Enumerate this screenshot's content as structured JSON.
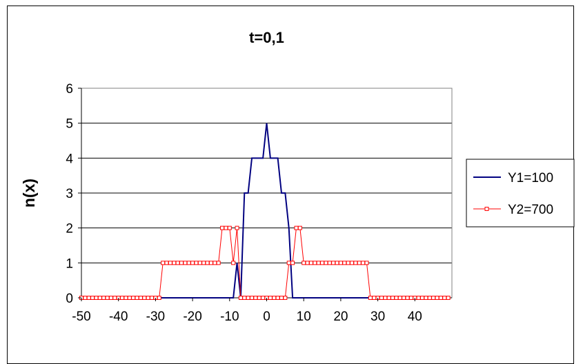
{
  "chart_data": {
    "type": "line",
    "title": "t=0,1",
    "xlabel": "",
    "ylabel": "n(x)",
    "xlim": [
      -50,
      50
    ],
    "ylim": [
      0,
      6
    ],
    "x_ticks": [
      -50,
      -40,
      -30,
      -20,
      -10,
      0,
      10,
      20,
      30,
      40
    ],
    "y_ticks": [
      0,
      1,
      2,
      3,
      4,
      5,
      6
    ],
    "grid": "horizontal",
    "legend_position": "right",
    "series": [
      {
        "name": "Y1=100",
        "color": "#000080",
        "marker": "none",
        "x": [
          -50,
          -49,
          -48,
          -47,
          -46,
          -45,
          -44,
          -43,
          -42,
          -41,
          -40,
          -39,
          -38,
          -37,
          -36,
          -35,
          -34,
          -33,
          -32,
          -31,
          -30,
          -29,
          -28,
          -27,
          -26,
          -25,
          -24,
          -23,
          -22,
          -21,
          -20,
          -19,
          -18,
          -17,
          -16,
          -15,
          -14,
          -13,
          -12,
          -11,
          -10,
          -9,
          -8,
          -7,
          -6,
          -5,
          -4,
          -3,
          -2,
          -1,
          0,
          1,
          2,
          3,
          4,
          5,
          6,
          7,
          8,
          9,
          10,
          11,
          12,
          13,
          14,
          15,
          16,
          17,
          18,
          19,
          20,
          21,
          22,
          23,
          24,
          25,
          26,
          27,
          28,
          29,
          30,
          31,
          32,
          33,
          34,
          35,
          36,
          37,
          38,
          39,
          40,
          41,
          42,
          43,
          44,
          45,
          46,
          47,
          48,
          49
        ],
        "y": [
          0,
          0,
          0,
          0,
          0,
          0,
          0,
          0,
          0,
          0,
          0,
          0,
          0,
          0,
          0,
          0,
          0,
          0,
          0,
          0,
          0,
          0,
          0,
          0,
          0,
          0,
          0,
          0,
          0,
          0,
          0,
          0,
          0,
          0,
          0,
          0,
          0,
          0,
          0,
          0,
          0,
          0,
          1,
          0,
          3,
          3,
          4,
          4,
          4,
          4,
          5,
          4,
          4,
          4,
          3,
          3,
          2,
          0,
          0,
          0,
          0,
          0,
          0,
          0,
          0,
          0,
          0,
          0,
          0,
          0,
          0,
          0,
          0,
          0,
          0,
          0,
          0,
          0,
          0,
          0,
          0,
          0,
          0,
          0,
          0,
          0,
          0,
          0,
          0,
          0,
          0,
          0,
          0,
          0,
          0,
          0,
          0,
          0,
          0,
          0
        ]
      },
      {
        "name": "Y2=700",
        "color": "#ff0000",
        "marker": "square",
        "x": [
          -50,
          -49,
          -48,
          -47,
          -46,
          -45,
          -44,
          -43,
          -42,
          -41,
          -40,
          -39,
          -38,
          -37,
          -36,
          -35,
          -34,
          -33,
          -32,
          -31,
          -30,
          -29,
          -28,
          -27,
          -26,
          -25,
          -24,
          -23,
          -22,
          -21,
          -20,
          -19,
          -18,
          -17,
          -16,
          -15,
          -14,
          -13,
          -12,
          -11,
          -10,
          -9,
          -8,
          -7,
          -6,
          -5,
          -4,
          -3,
          -2,
          -1,
          0,
          1,
          2,
          3,
          4,
          5,
          6,
          7,
          8,
          9,
          10,
          11,
          12,
          13,
          14,
          15,
          16,
          17,
          18,
          19,
          20,
          21,
          22,
          23,
          24,
          25,
          26,
          27,
          28,
          29,
          30,
          31,
          32,
          33,
          34,
          35,
          36,
          37,
          38,
          39,
          40,
          41,
          42,
          43,
          44,
          45,
          46,
          47,
          48,
          49
        ],
        "y": [
          0,
          0,
          0,
          0,
          0,
          0,
          0,
          0,
          0,
          0,
          0,
          0,
          0,
          0,
          0,
          0,
          0,
          0,
          0,
          0,
          0,
          0,
          1,
          1,
          1,
          1,
          1,
          1,
          1,
          1,
          1,
          1,
          1,
          1,
          1,
          1,
          1,
          1,
          2,
          2,
          2,
          1,
          2,
          0,
          0,
          0,
          0,
          0,
          0,
          0,
          0,
          0,
          0,
          0,
          0,
          0,
          1,
          1,
          2,
          2,
          1,
          1,
          1,
          1,
          1,
          1,
          1,
          1,
          1,
          1,
          1,
          1,
          1,
          1,
          1,
          1,
          1,
          1,
          0,
          0,
          0,
          0,
          0,
          0,
          0,
          0,
          0,
          0,
          0,
          0,
          0,
          0,
          0,
          0,
          0,
          0,
          0,
          0,
          0,
          0
        ]
      }
    ]
  }
}
